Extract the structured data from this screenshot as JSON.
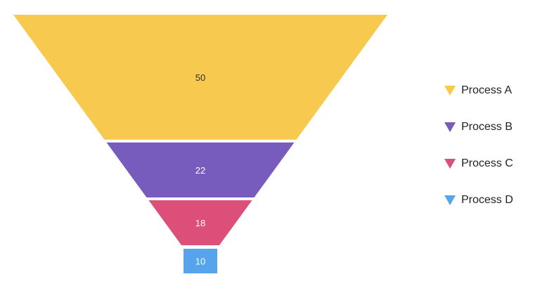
{
  "chart_data": {
    "type": "funnel",
    "categories": [
      "Process A",
      "Process B",
      "Process C",
      "Process D"
    ],
    "values": [
      50,
      22,
      18,
      10
    ],
    "colors": [
      "#F7C94F",
      "#775BBD",
      "#DB4F79",
      "#55A4EC"
    ],
    "label_colors": [
      "#333333",
      "#ffffff",
      "#ffffff",
      "#ffffff"
    ],
    "legend_position": "right",
    "legend_marker": "inverted-triangle"
  },
  "legend": {
    "items": [
      {
        "label": "Process A",
        "color": "#F7C94F"
      },
      {
        "label": "Process B",
        "color": "#775BBD"
      },
      {
        "label": "Process C",
        "color": "#DB4F79"
      },
      {
        "label": "Process D",
        "color": "#55A4EC"
      }
    ]
  }
}
